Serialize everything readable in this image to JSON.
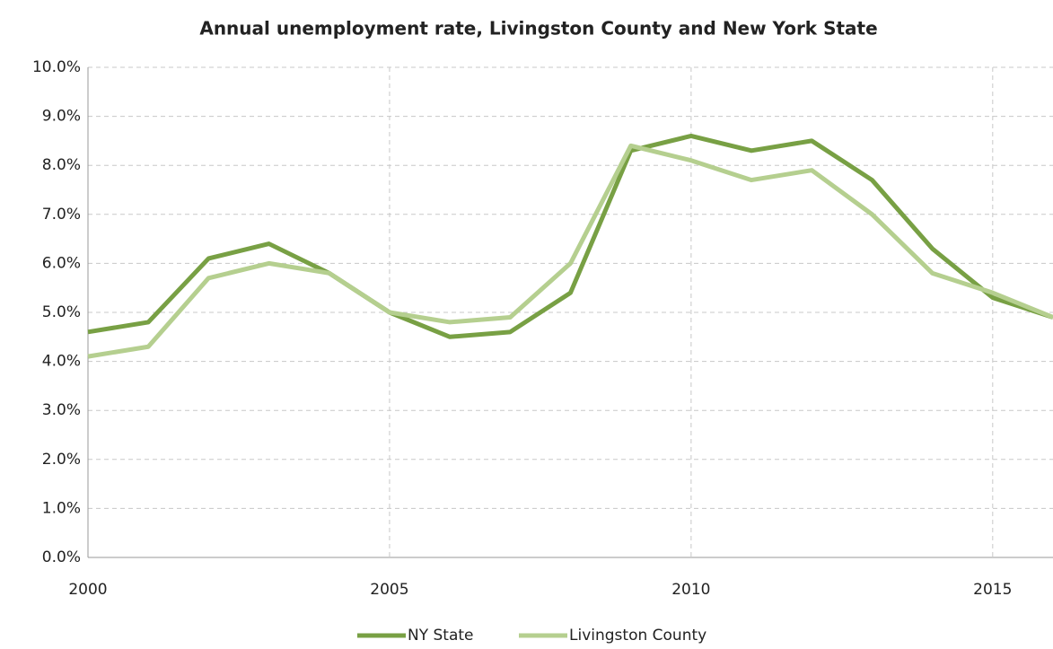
{
  "chart_data": {
    "type": "line",
    "title": "Annual unemployment rate, Livingston County and New York State",
    "x": [
      2000,
      2001,
      2002,
      2003,
      2004,
      2005,
      2006,
      2007,
      2008,
      2009,
      2010,
      2011,
      2012,
      2013,
      2014,
      2015,
      2016
    ],
    "series": [
      {
        "name": "NY State",
        "color": "#78a044",
        "values": [
          4.6,
          4.8,
          6.1,
          6.4,
          5.8,
          5.0,
          4.5,
          4.6,
          5.4,
          8.3,
          8.6,
          8.3,
          8.5,
          7.7,
          6.3,
          5.3,
          4.9
        ]
      },
      {
        "name": "Livingston County",
        "color": "#b5cf8f",
        "values": [
          4.1,
          4.3,
          5.7,
          6.0,
          5.8,
          5.0,
          4.8,
          4.9,
          6.0,
          8.4,
          8.1,
          7.7,
          7.9,
          7.0,
          5.8,
          5.4,
          4.9
        ]
      }
    ],
    "xlim": [
      2000,
      2016
    ],
    "xticks": [
      2000,
      2005,
      2010,
      2015
    ],
    "ylim": [
      0,
      10
    ],
    "yticks": [
      {
        "value": 0,
        "label": "0.0%"
      },
      {
        "value": 1,
        "label": "1.0%"
      },
      {
        "value": 2,
        "label": "2.0%"
      },
      {
        "value": 3,
        "label": "3.0%"
      },
      {
        "value": 4,
        "label": "4.0%"
      },
      {
        "value": 5,
        "label": "5.0%"
      },
      {
        "value": 6,
        "label": "6.0%"
      },
      {
        "value": 7,
        "label": "7.0%"
      },
      {
        "value": 8,
        "label": "8.0%"
      },
      {
        "value": 9,
        "label": "9.0%"
      },
      {
        "value": 10,
        "label": "10.0%"
      }
    ],
    "grid": true,
    "legend": "bottom"
  }
}
